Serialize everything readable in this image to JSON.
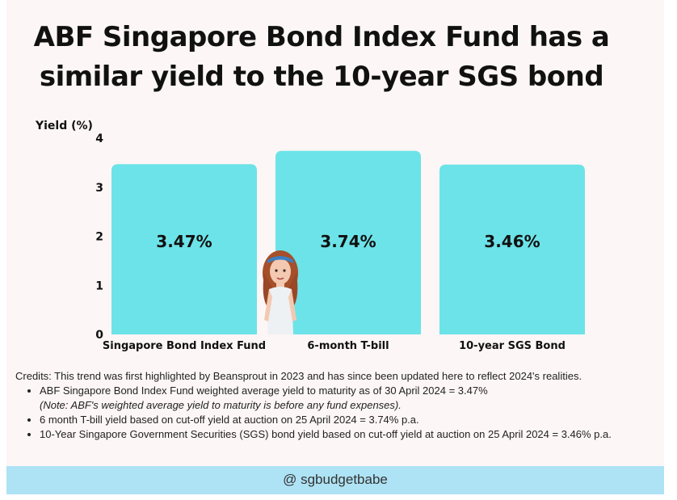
{
  "title": {
    "line1": "ABF Singapore Bond Index Fund has a",
    "line2": "similar yield to the 10-year SGS bond"
  },
  "chart_data": {
    "type": "bar",
    "ylabel": "Yield (%)",
    "xlabel": "",
    "ylim": [
      0,
      4
    ],
    "yticks": [
      "0",
      "1",
      "2",
      "3",
      "4"
    ],
    "categories": [
      "Singapore Bond Index Fund",
      "6-month T-bill",
      "10-year SGS Bond"
    ],
    "values": [
      3.47,
      3.74,
      3.46
    ],
    "data_labels": [
      "3.47%",
      "3.74%",
      "3.46%"
    ],
    "grid": false,
    "bar_color": "#6ce3e8"
  },
  "credits": {
    "intro": "Credits: This trend was first highlighted by Beansprout in 2023 and has since been updated here to reflect 2024's realities.",
    "items": [
      {
        "text": "ABF Singapore Bond Index Fund weighted average yield to maturity as of 30 April 2024 = 3.47%",
        "note": "(Note: ABF's weighted average yield to maturity is before any fund expenses)."
      },
      {
        "text": "6 month T-bill yield based on cut-off yield at auction on 25 April 2024 = 3.74% p.a."
      },
      {
        "text": "10-Year Singapore Government Securities (SGS) bond yield based on cut-off yield at auction on 25 April 2024 = 3.46% p.a."
      }
    ]
  },
  "footer": {
    "handle": "@ sgbudgetbabe"
  },
  "colors": {
    "background": "#fdf6f6",
    "bar": "#6ce3e8",
    "footer": "#aee3f5",
    "text": "#111111"
  }
}
